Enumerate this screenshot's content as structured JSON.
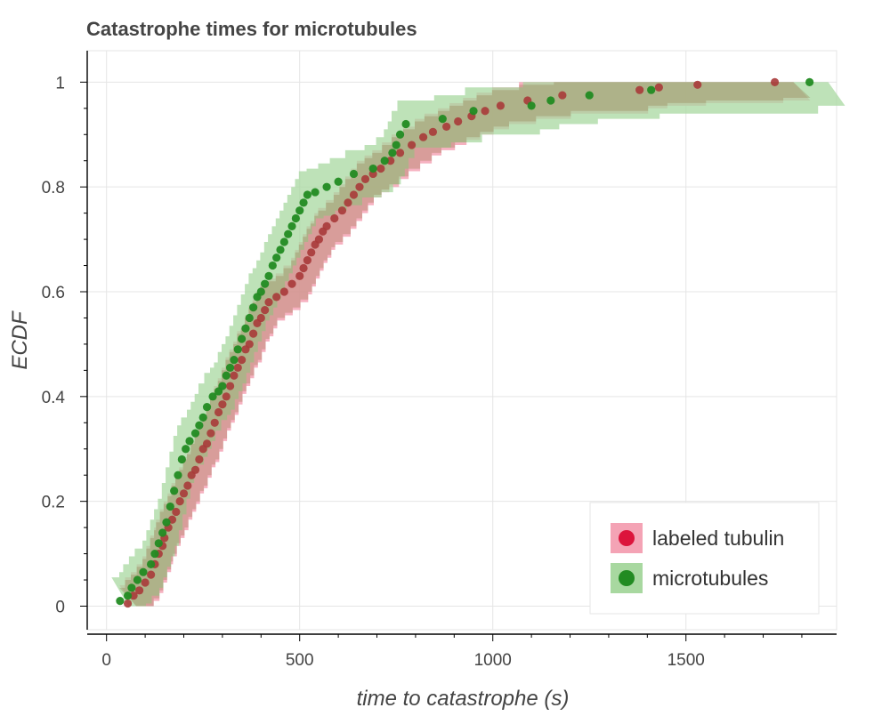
{
  "chart_data": {
    "type": "scatter",
    "title": "Catastrophe times for microtubules",
    "xlabel": "time to catastrophe (s)",
    "ylabel": "ECDF",
    "xlim": [
      -50,
      1890
    ],
    "ylim": [
      -0.045,
      1.06
    ],
    "x_ticks": [
      0,
      500,
      1000,
      1500
    ],
    "x_tick_labels": [
      "0",
      "500",
      "1000",
      "1500"
    ],
    "y_ticks": [
      0,
      0.2,
      0.4,
      0.6,
      0.8,
      1
    ],
    "y_tick_labels": [
      "0",
      "0.2",
      "0.4",
      "0.6",
      "0.8",
      "1"
    ],
    "grid": true,
    "legend_position": "bottom-right",
    "series": [
      {
        "name": "labeled tubulin",
        "point_color": "#dc143c",
        "band_color": "#f4a3b5",
        "points": [
          [
            55,
            0.005
          ],
          [
            70,
            0.02
          ],
          [
            85,
            0.03
          ],
          [
            100,
            0.045
          ],
          [
            115,
            0.06
          ],
          [
            125,
            0.08
          ],
          [
            135,
            0.1
          ],
          [
            145,
            0.115
          ],
          [
            150,
            0.13
          ],
          [
            160,
            0.15
          ],
          [
            170,
            0.165
          ],
          [
            180,
            0.18
          ],
          [
            190,
            0.2
          ],
          [
            200,
            0.215
          ],
          [
            210,
            0.23
          ],
          [
            220,
            0.25
          ],
          [
            230,
            0.26
          ],
          [
            240,
            0.28
          ],
          [
            250,
            0.3
          ],
          [
            260,
            0.31
          ],
          [
            270,
            0.33
          ],
          [
            280,
            0.35
          ],
          [
            290,
            0.37
          ],
          [
            300,
            0.385
          ],
          [
            310,
            0.4
          ],
          [
            320,
            0.42
          ],
          [
            330,
            0.44
          ],
          [
            340,
            0.455
          ],
          [
            350,
            0.47
          ],
          [
            360,
            0.49
          ],
          [
            370,
            0.5
          ],
          [
            380,
            0.52
          ],
          [
            390,
            0.54
          ],
          [
            400,
            0.55
          ],
          [
            410,
            0.565
          ],
          [
            420,
            0.58
          ],
          [
            440,
            0.59
          ],
          [
            460,
            0.6
          ],
          [
            480,
            0.615
          ],
          [
            500,
            0.63
          ],
          [
            510,
            0.645
          ],
          [
            520,
            0.66
          ],
          [
            530,
            0.675
          ],
          [
            540,
            0.69
          ],
          [
            550,
            0.7
          ],
          [
            560,
            0.715
          ],
          [
            570,
            0.725
          ],
          [
            590,
            0.74
          ],
          [
            610,
            0.755
          ],
          [
            625,
            0.77
          ],
          [
            640,
            0.785
          ],
          [
            655,
            0.8
          ],
          [
            670,
            0.815
          ],
          [
            690,
            0.825
          ],
          [
            710,
            0.835
          ],
          [
            735,
            0.85
          ],
          [
            760,
            0.865
          ],
          [
            790,
            0.88
          ],
          [
            820,
            0.895
          ],
          [
            845,
            0.905
          ],
          [
            880,
            0.915
          ],
          [
            910,
            0.925
          ],
          [
            945,
            0.935
          ],
          [
            980,
            0.945
          ],
          [
            1020,
            0.955
          ],
          [
            1090,
            0.965
          ],
          [
            1180,
            0.975
          ],
          [
            1380,
            0.985
          ],
          [
            1430,
            0.99
          ],
          [
            1530,
            0.995
          ],
          [
            1730,
            1.0
          ]
        ]
      },
      {
        "name": "microtubules",
        "point_color": "#228b22",
        "band_color": "#a8d8a0",
        "points": [
          [
            35,
            0.01
          ],
          [
            55,
            0.02
          ],
          [
            65,
            0.035
          ],
          [
            80,
            0.05
          ],
          [
            95,
            0.065
          ],
          [
            115,
            0.08
          ],
          [
            125,
            0.1
          ],
          [
            135,
            0.12
          ],
          [
            145,
            0.14
          ],
          [
            155,
            0.16
          ],
          [
            165,
            0.19
          ],
          [
            175,
            0.22
          ],
          [
            185,
            0.25
          ],
          [
            195,
            0.28
          ],
          [
            205,
            0.3
          ],
          [
            215,
            0.315
          ],
          [
            230,
            0.33
          ],
          [
            240,
            0.345
          ],
          [
            250,
            0.36
          ],
          [
            260,
            0.38
          ],
          [
            275,
            0.4
          ],
          [
            290,
            0.41
          ],
          [
            300,
            0.42
          ],
          [
            310,
            0.44
          ],
          [
            320,
            0.455
          ],
          [
            330,
            0.47
          ],
          [
            340,
            0.49
          ],
          [
            350,
            0.51
          ],
          [
            360,
            0.53
          ],
          [
            370,
            0.55
          ],
          [
            380,
            0.57
          ],
          [
            390,
            0.59
          ],
          [
            400,
            0.6
          ],
          [
            410,
            0.615
          ],
          [
            420,
            0.63
          ],
          [
            430,
            0.65
          ],
          [
            440,
            0.665
          ],
          [
            450,
            0.68
          ],
          [
            460,
            0.695
          ],
          [
            470,
            0.71
          ],
          [
            480,
            0.725
          ],
          [
            490,
            0.74
          ],
          [
            500,
            0.755
          ],
          [
            510,
            0.77
          ],
          [
            520,
            0.785
          ],
          [
            540,
            0.79
          ],
          [
            570,
            0.8
          ],
          [
            600,
            0.81
          ],
          [
            640,
            0.825
          ],
          [
            690,
            0.835
          ],
          [
            720,
            0.85
          ],
          [
            740,
            0.865
          ],
          [
            750,
            0.88
          ],
          [
            760,
            0.9
          ],
          [
            775,
            0.92
          ],
          [
            870,
            0.93
          ],
          [
            950,
            0.945
          ],
          [
            1100,
            0.955
          ],
          [
            1150,
            0.965
          ],
          [
            1250,
            0.975
          ],
          [
            1410,
            0.985
          ],
          [
            1820,
            1.0
          ]
        ]
      }
    ]
  }
}
